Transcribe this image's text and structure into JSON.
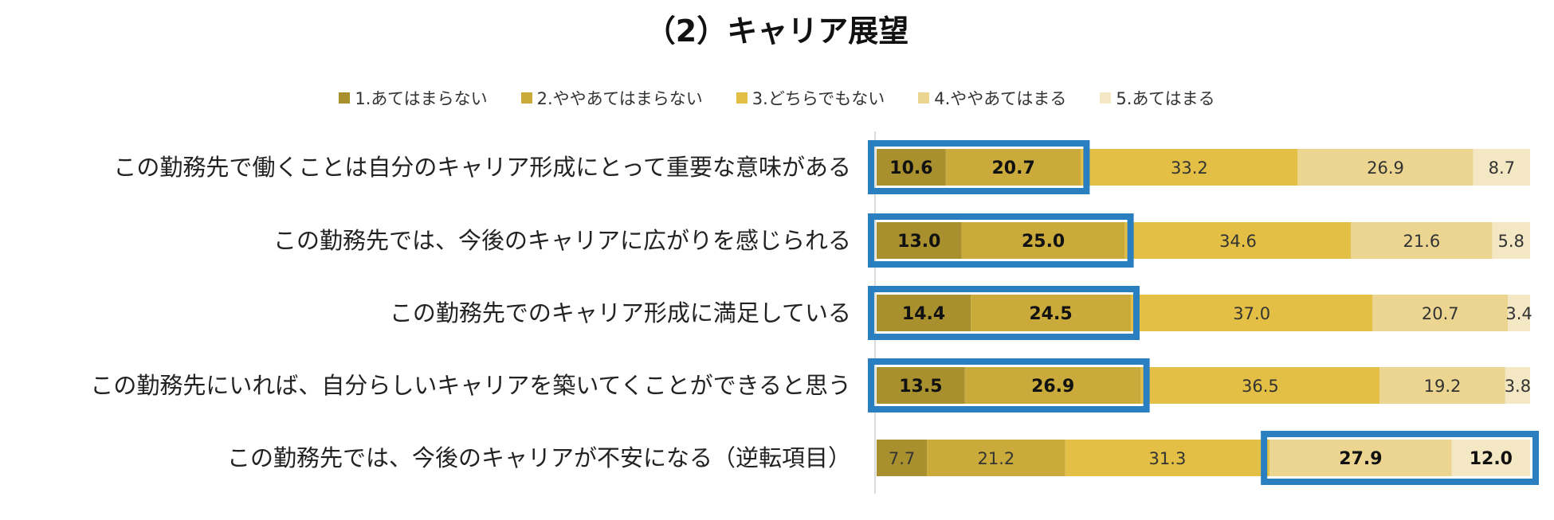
{
  "chart_data": {
    "type": "bar",
    "orientation": "horizontal",
    "stacked": "percent",
    "title": "（2）キャリア展望",
    "legend_position": "top",
    "categories": [
      "この勤務先で働くことは自分のキャリア形成にとって重要な意味がある",
      "この勤務先では、今後のキャリアに広がりを感じられる",
      "この勤務先でのキャリア形成に満足している",
      "この勤務先にいれば、自分らしいキャリアを築いてくことができると思う",
      "この勤務先では、今後のキャリアが不安になる（逆転項目）"
    ],
    "series": [
      {
        "name": "1.あてはまらない",
        "color": "#a8902e",
        "values": [
          10.6,
          13.0,
          14.4,
          13.5,
          7.7
        ]
      },
      {
        "name": "2.ややあてはまらない",
        "color": "#c9aa3a",
        "values": [
          20.7,
          25.0,
          24.5,
          26.9,
          21.2
        ]
      },
      {
        "name": "3.どちらでもない",
        "color": "#e3bf45",
        "values": [
          33.2,
          34.6,
          37.0,
          36.5,
          31.3
        ]
      },
      {
        "name": "4.ややあてはまる",
        "color": "#ebd590",
        "values": [
          26.9,
          21.6,
          20.7,
          19.2,
          27.9
        ]
      },
      {
        "name": "5.あてはまる",
        "color": "#f3e7c4",
        "values": [
          8.7,
          5.8,
          3.4,
          3.8,
          12.0
        ]
      }
    ],
    "highlight_color": "#2a7fc0",
    "highlighted_series": [
      [
        0,
        1
      ],
      [
        0,
        1
      ],
      [
        0,
        1
      ],
      [
        0,
        1
      ],
      [
        3,
        4
      ]
    ],
    "xlim": [
      0,
      100
    ],
    "grid": false
  }
}
